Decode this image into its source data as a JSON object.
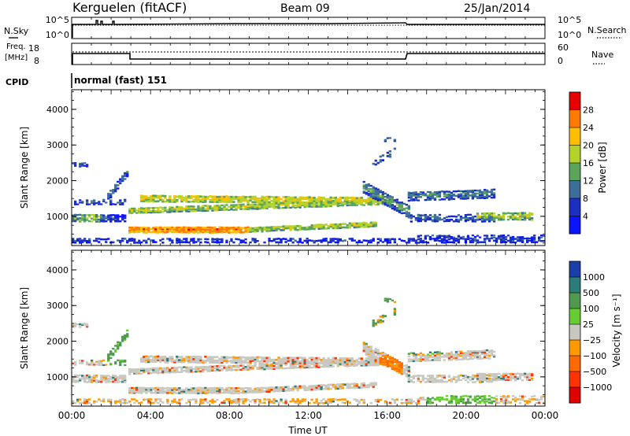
{
  "header": {
    "station": "Kerguelen (fitACF)",
    "beam": "Beam 09",
    "date": "25/Jan/2014"
  },
  "top_panels": {
    "nsky_label": "N.Sky",
    "nsearch_label": "N.Search",
    "nsky_ticks": [
      "10^5",
      "10^0"
    ],
    "nsearch_ticks": [
      "10^5",
      "10^0"
    ],
    "freq_label_1": "Freq.",
    "freq_label_2": "[MHz]",
    "freq_ticks": [
      "18",
      "8"
    ],
    "nave_label": "Nave",
    "nave_ticks": [
      "60",
      "0"
    ],
    "cpid_label": "CPID",
    "cpid_text": "normal (fast) 151"
  },
  "chart_data": [
    {
      "type": "heatmap",
      "name": "power-panel",
      "ylabel": "Slant Range [km]",
      "xlabel": "",
      "ylim": [
        180,
        4550
      ],
      "xlim": [
        0,
        24
      ],
      "yticks": [
        1000,
        2000,
        3000,
        4000
      ],
      "colorbar": {
        "label": "Power [dB]",
        "ticks": [
          "28",
          "24",
          "20",
          "16",
          "12",
          "8",
          "4"
        ],
        "colors": [
          "#e60000",
          "#ff7a00",
          "#ffbf00",
          "#b5d22a",
          "#5aa55a",
          "#3c6e9a",
          "#1c2fc0",
          "#0a14ff"
        ]
      }
    },
    {
      "type": "heatmap",
      "name": "velocity-panel",
      "ylabel": "Slant Range [km]",
      "xlabel": "Time UT",
      "ylim": [
        180,
        4550
      ],
      "xlim": [
        0,
        24
      ],
      "yticks": [
        1000,
        2000,
        3000,
        4000
      ],
      "xtick_labels": [
        "00:00",
        "04:00",
        "08:00",
        "12:00",
        "16:00",
        "20:00",
        "00:00"
      ],
      "xtick_hours": [
        0,
        4,
        8,
        12,
        16,
        20,
        24
      ],
      "colorbar": {
        "label": "Velocity [m s⁻¹]",
        "ticks": [
          "1000",
          "500",
          "100",
          "25",
          "−25",
          "−100",
          "−500",
          "−1000"
        ],
        "colors": [
          "#1b3fa8",
          "#2c7c7c",
          "#4f9a4f",
          "#66cc33",
          "#c8c8c0",
          "#ff9900",
          "#ff6a00",
          "#ff3300",
          "#e00000"
        ]
      }
    }
  ]
}
